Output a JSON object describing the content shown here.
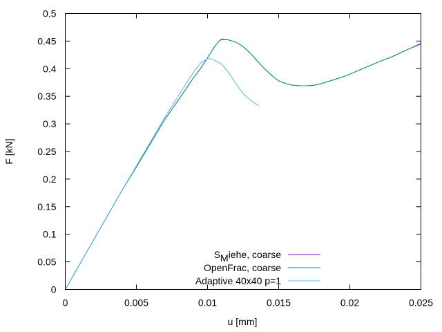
{
  "chart_data": {
    "type": "line",
    "xlabel": "u [mm]",
    "ylabel": "F [kN]",
    "xlim": [
      0,
      0.025
    ],
    "ylim": [
      0,
      0.5
    ],
    "x_ticks": [
      "0",
      "0.005",
      "0.01",
      "0.015",
      "0.02",
      "0.025"
    ],
    "x_tick_values": [
      0,
      0.005,
      0.01,
      0.015,
      0.02,
      0.025
    ],
    "y_ticks": [
      "0",
      "0.05",
      "0.1",
      "0.15",
      "0.2",
      "0.25",
      "0.3",
      "0.35",
      "0.4",
      "0.45",
      "0.5"
    ],
    "y_tick_values": [
      0,
      0.05,
      0.1,
      0.15,
      0.2,
      0.25,
      0.3,
      0.35,
      0.4,
      0.45,
      0.5
    ],
    "grid": false,
    "legend_position": "bottom-center",
    "series": [
      {
        "name": "Miehe, coarse",
        "legend_label": {
          "prefix": "S",
          "subscript": "M",
          "suffix": "iehe, coarse"
        },
        "color": "#9400d3",
        "points": [
          [
            0,
            0
          ],
          [
            0.001,
            0.045
          ],
          [
            0.002,
            0.09
          ],
          [
            0.003,
            0.135
          ],
          [
            0.004,
            0.18
          ],
          [
            0.005,
            0.222
          ],
          [
            0.006,
            0.265
          ],
          [
            0.007,
            0.308
          ],
          [
            0.008,
            0.345
          ],
          [
            0.009,
            0.383
          ],
          [
            0.0095,
            0.4
          ],
          [
            0.01,
            0.42
          ],
          [
            0.0105,
            0.44
          ],
          [
            0.0108,
            0.45
          ],
          [
            0.011,
            0.453
          ],
          [
            0.0115,
            0.452
          ],
          [
            0.012,
            0.448
          ],
          [
            0.0125,
            0.44
          ],
          [
            0.013,
            0.428
          ],
          [
            0.0135,
            0.414
          ],
          [
            0.014,
            0.4
          ],
          [
            0.0145,
            0.388
          ],
          [
            0.015,
            0.378
          ],
          [
            0.0155,
            0.373
          ],
          [
            0.016,
            0.37
          ],
          [
            0.0165,
            0.369
          ],
          [
            0.017,
            0.369
          ],
          [
            0.0175,
            0.37
          ],
          [
            0.018,
            0.373
          ],
          [
            0.0185,
            0.377
          ],
          [
            0.019,
            0.381
          ],
          [
            0.0195,
            0.385
          ],
          [
            0.02,
            0.39
          ],
          [
            0.021,
            0.401
          ],
          [
            0.022,
            0.412
          ],
          [
            0.023,
            0.422
          ],
          [
            0.024,
            0.434
          ],
          [
            0.025,
            0.445
          ]
        ]
      },
      {
        "name": "OpenFrac, coarse",
        "color": "#009e73",
        "points": [
          [
            0,
            0
          ],
          [
            0.001,
            0.045
          ],
          [
            0.002,
            0.09
          ],
          [
            0.003,
            0.135
          ],
          [
            0.004,
            0.18
          ],
          [
            0.005,
            0.222
          ],
          [
            0.006,
            0.265
          ],
          [
            0.007,
            0.308
          ],
          [
            0.008,
            0.345
          ],
          [
            0.009,
            0.383
          ],
          [
            0.0095,
            0.4
          ],
          [
            0.01,
            0.42
          ],
          [
            0.0105,
            0.44
          ],
          [
            0.0108,
            0.45
          ],
          [
            0.011,
            0.454
          ],
          [
            0.0115,
            0.452
          ],
          [
            0.012,
            0.448
          ],
          [
            0.0125,
            0.44
          ],
          [
            0.013,
            0.428
          ],
          [
            0.0135,
            0.414
          ],
          [
            0.014,
            0.4
          ],
          [
            0.0145,
            0.388
          ],
          [
            0.015,
            0.378
          ],
          [
            0.0155,
            0.373
          ],
          [
            0.016,
            0.37
          ],
          [
            0.0165,
            0.369
          ],
          [
            0.017,
            0.369
          ],
          [
            0.0175,
            0.37
          ],
          [
            0.018,
            0.373
          ],
          [
            0.0185,
            0.377
          ],
          [
            0.019,
            0.381
          ],
          [
            0.0195,
            0.385
          ],
          [
            0.02,
            0.39
          ],
          [
            0.021,
            0.401
          ],
          [
            0.022,
            0.412
          ],
          [
            0.023,
            0.422
          ],
          [
            0.024,
            0.434
          ],
          [
            0.025,
            0.446
          ]
        ]
      },
      {
        "name": "Adaptive 40x40 p=1",
        "color": "#56b4e9",
        "points": [
          [
            0,
            0
          ],
          [
            0.001,
            0.045
          ],
          [
            0.002,
            0.09
          ],
          [
            0.003,
            0.135
          ],
          [
            0.004,
            0.18
          ],
          [
            0.005,
            0.224
          ],
          [
            0.006,
            0.268
          ],
          [
            0.007,
            0.312
          ],
          [
            0.008,
            0.353
          ],
          [
            0.0085,
            0.373
          ],
          [
            0.009,
            0.393
          ],
          [
            0.0095,
            0.41
          ],
          [
            0.01,
            0.418
          ],
          [
            0.0102,
            0.418
          ],
          [
            0.0105,
            0.415
          ],
          [
            0.011,
            0.408
          ],
          [
            0.0115,
            0.392
          ],
          [
            0.012,
            0.373
          ],
          [
            0.0125,
            0.355
          ],
          [
            0.013,
            0.343
          ],
          [
            0.0133,
            0.338
          ],
          [
            0.0136,
            0.333
          ]
        ]
      }
    ]
  }
}
